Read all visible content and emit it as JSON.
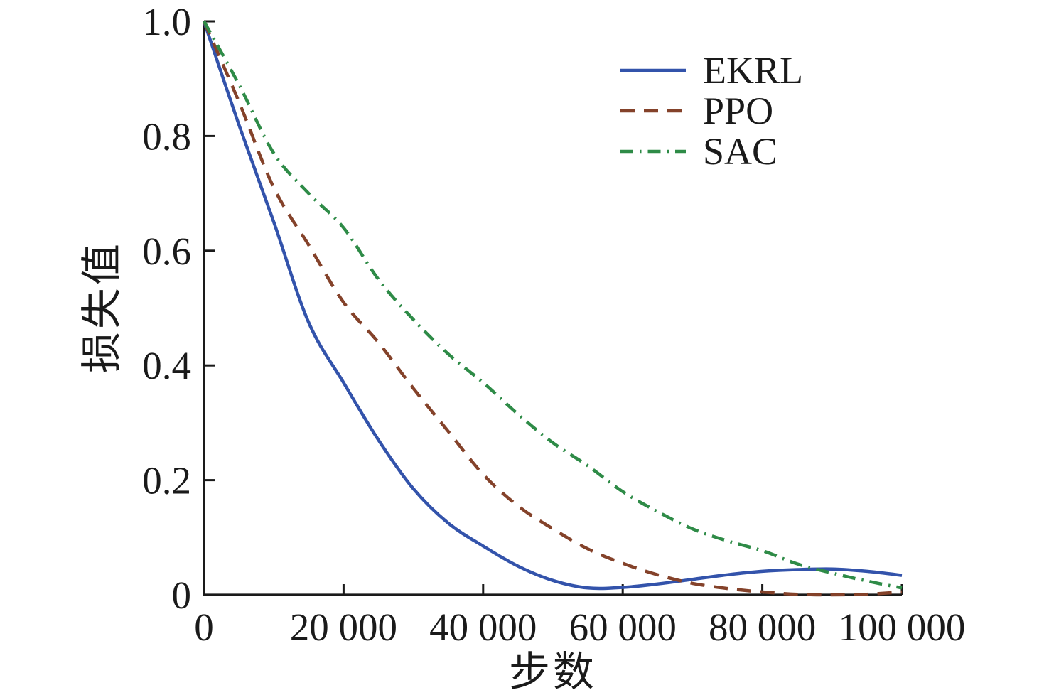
{
  "figure": {
    "background": "#ffffff",
    "text_color": "#1a1a1a"
  },
  "chart_data": {
    "type": "line",
    "title": "",
    "xlabel": "步数",
    "ylabel": "损失值",
    "xlim": [
      0,
      100000
    ],
    "ylim": [
      0,
      1.0
    ],
    "grid": false,
    "legend": {
      "position": "upper-right-inside",
      "entries": [
        "EKRL",
        "PPO",
        "SAC"
      ]
    },
    "x_ticks": {
      "values": [
        0,
        20000,
        40000,
        60000,
        80000,
        100000
      ],
      "labels": [
        "0",
        "20 000",
        "40 000",
        "60 000",
        "80 000",
        "100 000"
      ]
    },
    "y_ticks": {
      "values": [
        0,
        0.2,
        0.4,
        0.6,
        0.8,
        1.0
      ],
      "labels": [
        "0",
        "0.2",
        "0.4",
        "0.6",
        "0.8",
        "1.0"
      ]
    },
    "x": [
      0,
      5000,
      10000,
      15000,
      20000,
      25000,
      30000,
      35000,
      40000,
      45000,
      50000,
      55000,
      60000,
      65000,
      70000,
      75000,
      80000,
      85000,
      90000,
      95000,
      100000
    ],
    "series": [
      {
        "name": "EKRL",
        "color": "#3353ab",
        "line_style": "solid",
        "values": [
          1.0,
          0.82,
          0.65,
          0.475,
          0.37,
          0.27,
          0.185,
          0.125,
          0.085,
          0.05,
          0.025,
          0.012,
          0.013,
          0.019,
          0.027,
          0.035,
          0.041,
          0.044,
          0.045,
          0.041,
          0.034
        ]
      },
      {
        "name": "PPO",
        "color": "#84422a",
        "line_style": "dashed",
        "values": [
          1.0,
          0.86,
          0.71,
          0.61,
          0.51,
          0.44,
          0.36,
          0.285,
          0.21,
          0.155,
          0.115,
          0.08,
          0.055,
          0.035,
          0.02,
          0.011,
          0.005,
          0.001,
          0.0,
          0.001,
          0.005
        ]
      },
      {
        "name": "SAC",
        "color": "#2e8b47",
        "line_style": "dashdot",
        "values": [
          1.0,
          0.89,
          0.77,
          0.7,
          0.64,
          0.55,
          0.48,
          0.42,
          0.37,
          0.315,
          0.265,
          0.225,
          0.18,
          0.145,
          0.115,
          0.094,
          0.077,
          0.054,
          0.038,
          0.024,
          0.012
        ]
      }
    ]
  }
}
